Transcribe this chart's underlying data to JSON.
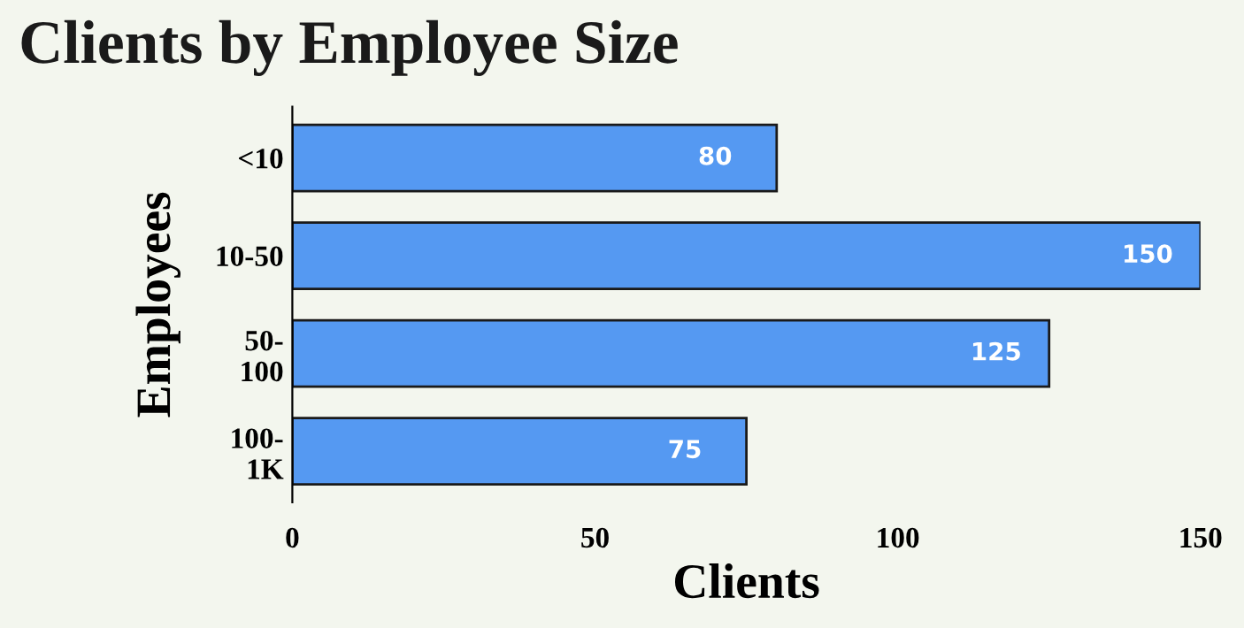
{
  "chart_data": {
    "type": "bar",
    "orientation": "horizontal",
    "title": "Clients by Employee Size",
    "xlabel": "Clients",
    "ylabel": "Employees",
    "categories": [
      "<10",
      "10-50",
      "50-\n100",
      "100-\n1K"
    ],
    "values": [
      80,
      150,
      125,
      75
    ],
    "color": "#5599f2",
    "xlim": [
      0,
      150
    ],
    "xticks": [
      0,
      50,
      100,
      150
    ],
    "data_labels": true,
    "grid": false,
    "legend": false
  }
}
